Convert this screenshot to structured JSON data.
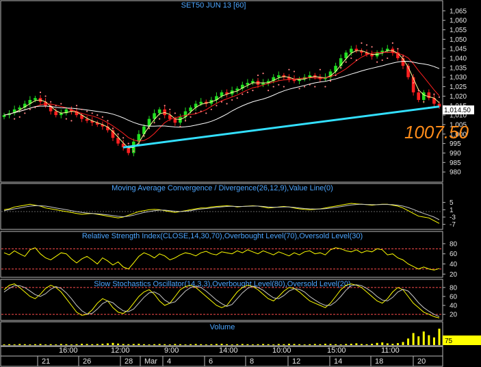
{
  "chart_data": [
    {
      "type": "candlestick",
      "title": "SET50 JUN 13   [60]",
      "ylim": [
        975,
        1070
      ],
      "yticks": [
        980,
        985,
        990,
        995,
        1000,
        1005,
        1010,
        1015,
        1020,
        1025,
        1030,
        1035,
        1040,
        1045,
        1050,
        1055,
        1060,
        1065
      ],
      "ytick_labels": [
        "980",
        "985",
        "990",
        "995",
        "1,000",
        "1,005",
        "1,010",
        "1,015",
        "1,020",
        "1,025",
        "1,030",
        "1,035",
        "1,040",
        "1,045",
        "1,050",
        "1,055",
        "1,060",
        "1,065"
      ],
      "last_price": 1014.5,
      "last_price_label": "1,014.50",
      "annotation": "1007.50",
      "close": [
        1010,
        1011,
        1013,
        1014,
        1016,
        1018,
        1019,
        1017,
        1015,
        1012,
        1010,
        1011,
        1013,
        1012,
        1010,
        1008,
        1007,
        1006,
        1005,
        1004,
        1002,
        998,
        995,
        993,
        990,
        996,
        1000,
        1004,
        1008,
        1011,
        1013,
        1010,
        1008,
        1006,
        1009,
        1012,
        1014,
        1016,
        1017,
        1016,
        1018,
        1020,
        1022,
        1021,
        1023,
        1024,
        1026,
        1027,
        1028,
        1026,
        1027,
        1028,
        1030,
        1031,
        1030,
        1029,
        1028,
        1029,
        1030,
        1031,
        1030,
        1029,
        1030,
        1033,
        1036,
        1040,
        1043,
        1045,
        1044,
        1043,
        1042,
        1041,
        1043,
        1044,
        1045,
        1043,
        1040,
        1036,
        1030,
        1022,
        1018,
        1022,
        1019,
        1016,
        1014.5
      ]
    },
    {
      "type": "line",
      "title": "Moving Average Convergence / Divergence(26,12,9),Value Line(0)",
      "ylim": [
        -9,
        9
      ],
      "yticks": [
        5,
        1,
        -3,
        -7
      ],
      "ytick_labels": [
        "5",
        "1",
        "-3",
        "-7"
      ],
      "reference_line": 0,
      "series": [
        {
          "color": "#ffff00",
          "values": [
            1,
            1.5,
            2.5,
            3,
            3.5,
            4,
            3.5,
            3,
            2,
            1.5,
            1,
            0.5,
            0,
            -0.5,
            -1,
            -1.5,
            -1.2,
            -1,
            -1.5,
            -2,
            -2.5,
            -3,
            -3.5,
            -3,
            -2,
            -1,
            0,
            0.5,
            1,
            1.2,
            1,
            0.5,
            0,
            -0.5,
            0,
            0.5,
            1,
            1.5,
            2,
            2,
            2.5,
            2.8,
            3,
            3.2,
            3,
            2.5,
            2.8,
            3,
            3.2,
            3,
            2.5,
            2,
            2.2,
            2.5,
            2.8,
            2.5,
            2,
            1.5,
            1.2,
            1,
            1.2,
            1.5,
            2,
            2.5,
            3,
            3.5,
            4,
            4.5,
            4.2,
            4,
            3.8,
            3.5,
            3.8,
            4,
            4,
            3.5,
            3,
            2,
            0.5,
            -1,
            -2.5,
            -3,
            -3.5,
            -5,
            -6.5
          ]
        },
        {
          "color": "#c8c8c8",
          "values": [
            0.5,
            1,
            1.5,
            2,
            2.5,
            3,
            3.2,
            3.2,
            3,
            2.5,
            2,
            1.5,
            1,
            0.5,
            0,
            -0.5,
            -0.8,
            -1,
            -1.2,
            -1.5,
            -1.8,
            -2.2,
            -2.6,
            -2.8,
            -2.5,
            -2,
            -1.2,
            -0.5,
            0,
            0.5,
            0.8,
            0.8,
            0.5,
            0.2,
            0,
            0.2,
            0.5,
            1,
            1.4,
            1.7,
            2,
            2.3,
            2.6,
            2.8,
            2.9,
            2.8,
            2.8,
            2.9,
            3,
            3,
            2.8,
            2.5,
            2.4,
            2.4,
            2.5,
            2.5,
            2.3,
            2,
            1.7,
            1.5,
            1.4,
            1.4,
            1.6,
            1.9,
            2.3,
            2.7,
            3.2,
            3.6,
            3.9,
            4,
            3.9,
            3.8,
            3.8,
            3.9,
            3.9,
            3.8,
            3.5,
            3,
            2.2,
            1.2,
            0,
            -1,
            -2,
            -3,
            -4.5
          ]
        }
      ]
    },
    {
      "type": "line",
      "title": "Relative Strength Index(CLOSE,14,30,70),Overbought Level(70),Oversold Level(30)",
      "ylim": [
        15,
        88
      ],
      "yticks": [
        80,
        60,
        40,
        20
      ],
      "ytick_labels": [
        "80",
        "60",
        "40",
        "20"
      ],
      "overbought": 70,
      "oversold": 30,
      "series": [
        {
          "color": "#ffff00",
          "values": [
            62,
            58,
            66,
            60,
            55,
            68,
            72,
            60,
            52,
            48,
            55,
            62,
            60,
            50,
            42,
            50,
            55,
            48,
            40,
            52,
            46,
            38,
            44,
            34,
            30,
            42,
            55,
            62,
            58,
            52,
            60,
            56,
            48,
            52,
            58,
            62,
            60,
            56,
            62,
            65,
            60,
            58,
            64,
            62,
            60,
            66,
            62,
            68,
            64,
            60,
            66,
            62,
            58,
            64,
            60,
            56,
            62,
            58,
            64,
            66,
            60,
            62,
            58,
            68,
            72,
            70,
            66,
            64,
            68,
            62,
            66,
            64,
            70,
            68,
            58,
            60,
            52,
            48,
            40,
            35,
            30,
            34,
            30,
            28,
            31
          ]
        }
      ]
    },
    {
      "type": "line",
      "title": "Slow Stochastics Oscillator(14,3,3),Overbought Level(80),Oversold Level(20)",
      "ylim": [
        8,
        92
      ],
      "yticks": [
        80,
        60,
        40,
        20
      ],
      "ytick_labels": [
        "80",
        "60",
        "40",
        "20"
      ],
      "overbought": 80,
      "oversold": 20,
      "series": [
        {
          "color": "#ffff00",
          "values": [
            75,
            85,
            88,
            80,
            70,
            60,
            55,
            65,
            78,
            85,
            80,
            70,
            55,
            40,
            25,
            18,
            20,
            30,
            45,
            55,
            50,
            35,
            25,
            22,
            30,
            45,
            60,
            70,
            75,
            65,
            50,
            40,
            45,
            60,
            75,
            82,
            85,
            80,
            70,
            60,
            50,
            40,
            35,
            40,
            55,
            70,
            80,
            85,
            82,
            75,
            65,
            55,
            50,
            60,
            72,
            80,
            78,
            70,
            60,
            50,
            45,
            40,
            35,
            45,
            60,
            75,
            85,
            88,
            85,
            80,
            70,
            60,
            50,
            45,
            55,
            70,
            80,
            75,
            60,
            45,
            35,
            25,
            20,
            15,
            12
          ]
        },
        {
          "color": "#c8c8c8",
          "values": [
            70,
            78,
            84,
            84,
            80,
            72,
            64,
            60,
            66,
            76,
            82,
            78,
            68,
            55,
            40,
            28,
            21,
            22,
            32,
            44,
            50,
            46,
            36,
            28,
            26,
            32,
            45,
            58,
            68,
            70,
            64,
            52,
            45,
            48,
            60,
            72,
            80,
            83,
            80,
            72,
            62,
            52,
            44,
            38,
            42,
            55,
            68,
            78,
            83,
            80,
            74,
            65,
            57,
            55,
            62,
            72,
            77,
            76,
            70,
            60,
            52,
            45,
            40,
            40,
            48,
            60,
            74,
            84,
            86,
            84,
            78,
            70,
            60,
            52,
            50,
            58,
            70,
            76,
            72,
            60,
            46,
            35,
            27,
            20,
            15
          ]
        }
      ]
    },
    {
      "type": "bar",
      "title": "Volume",
      "ylim": [
        0,
        100
      ],
      "last_value_label": "75",
      "values": [
        3,
        4,
        3,
        5,
        4,
        3,
        4,
        5,
        3,
        4,
        3,
        5,
        4,
        3,
        4,
        6,
        5,
        4,
        5,
        6,
        8,
        10,
        7,
        5,
        4,
        5,
        6,
        4,
        3,
        4,
        5,
        4,
        3,
        5,
        4,
        3,
        4,
        5,
        4,
        3,
        4,
        5,
        6,
        4,
        3,
        4,
        5,
        4,
        3,
        4,
        5,
        4,
        3,
        5,
        4,
        6,
        5,
        4,
        3,
        4,
        5,
        4,
        6,
        5,
        4,
        3,
        5,
        6,
        8,
        5,
        4,
        6,
        10,
        12,
        8,
        6,
        9,
        14,
        30,
        55,
        40,
        62,
        45,
        35,
        75
      ]
    }
  ],
  "x_axis": {
    "time_labels": [
      "16:00",
      "12:00",
      "9:00",
      "14:00",
      "10:00",
      "15:00",
      "11:00"
    ],
    "date_labels": [
      "21",
      "26",
      "28",
      "Mar",
      "4",
      "6",
      "8",
      "12",
      "14",
      "18",
      "20"
    ]
  }
}
